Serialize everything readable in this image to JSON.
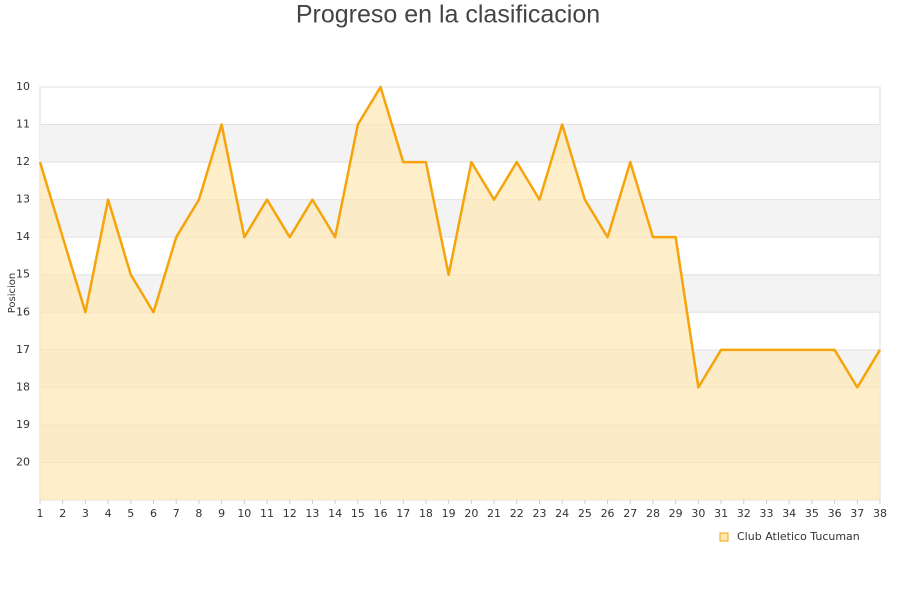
{
  "chart_data": {
    "type": "line",
    "title": "Progreso en la clasificacion",
    "y_label": "Posicion",
    "x": [
      1,
      2,
      3,
      4,
      5,
      6,
      7,
      8,
      9,
      10,
      11,
      12,
      13,
      14,
      15,
      16,
      17,
      18,
      19,
      20,
      21,
      22,
      23,
      24,
      25,
      26,
      27,
      28,
      29,
      30,
      31,
      32,
      33,
      34,
      35,
      36,
      37,
      38
    ],
    "xlim": [
      1,
      38
    ],
    "xticks": [
      1,
      2,
      3,
      4,
      5,
      6,
      7,
      8,
      9,
      10,
      11,
      12,
      13,
      14,
      15,
      16,
      17,
      18,
      19,
      20,
      21,
      22,
      23,
      24,
      25,
      26,
      27,
      28,
      29,
      30,
      31,
      32,
      33,
      34,
      35,
      36,
      37,
      38
    ],
    "ylim": [
      10,
      21
    ],
    "y_reversed": true,
    "yticks": [
      10,
      11,
      12,
      13,
      14,
      15,
      16,
      17,
      18,
      19,
      20
    ],
    "series": [
      {
        "name": "Club Atletico Tucuman",
        "color": "#f5a40c",
        "fill": "#ffe7b3",
        "values": [
          12,
          14,
          16,
          13,
          15,
          16,
          14,
          13,
          11,
          14,
          13,
          14,
          13,
          14,
          11,
          10,
          12,
          12,
          15,
          12,
          13,
          12,
          13,
          11,
          13,
          14,
          12,
          14,
          14,
          18,
          17,
          17,
          17,
          17,
          17,
          17,
          18,
          17
        ]
      }
    ],
    "legend": "bottom-right"
  }
}
